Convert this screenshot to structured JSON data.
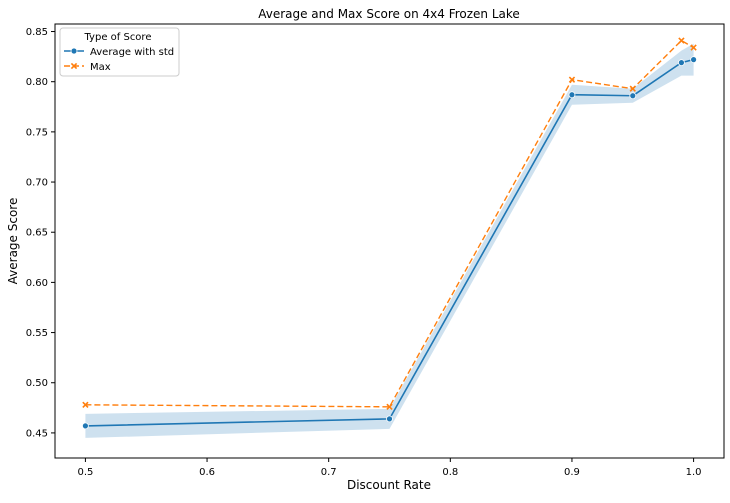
{
  "chart_data": {
    "type": "line",
    "title": "Average and Max Score on 4x4 Frozen Lake",
    "xlabel": "Discount Rate",
    "ylabel": "Average Score",
    "xlim": [
      0.475,
      1.025
    ],
    "ylim": [
      0.425,
      0.8575
    ],
    "x_ticks": [
      0.5,
      0.6,
      0.7,
      0.8,
      0.9,
      1.0
    ],
    "x_tick_labels": [
      "0.5",
      "0.6",
      "0.7",
      "0.8",
      "0.9",
      "1.0"
    ],
    "y_ticks": [
      0.45,
      0.5,
      0.55,
      0.6,
      0.65,
      0.7,
      0.75,
      0.8,
      0.85
    ],
    "y_tick_labels": [
      "0.45",
      "0.50",
      "0.55",
      "0.60",
      "0.65",
      "0.70",
      "0.75",
      "0.80",
      "0.85"
    ],
    "grid": false,
    "legend": {
      "title": "Type of Score",
      "placement": "top-left"
    },
    "x": [
      0.5,
      0.75,
      0.9,
      0.95,
      0.99,
      1.0
    ],
    "series": [
      {
        "name": "Average with std",
        "values": [
          0.457,
          0.464,
          0.787,
          0.786,
          0.819,
          0.822
        ],
        "band_lower": [
          0.445,
          0.454,
          0.777,
          0.779,
          0.806,
          0.806
        ],
        "band_upper": [
          0.469,
          0.474,
          0.797,
          0.793,
          0.831,
          0.838
        ],
        "color": "#1f77b4",
        "band_color": "#1f77b4",
        "marker": "circle",
        "line_style": "solid"
      },
      {
        "name": "Max",
        "values": [
          0.478,
          0.476,
          0.802,
          0.793,
          0.841,
          0.834
        ],
        "color": "#ff7f0e",
        "marker": "x",
        "line_style": "dashed"
      }
    ]
  }
}
